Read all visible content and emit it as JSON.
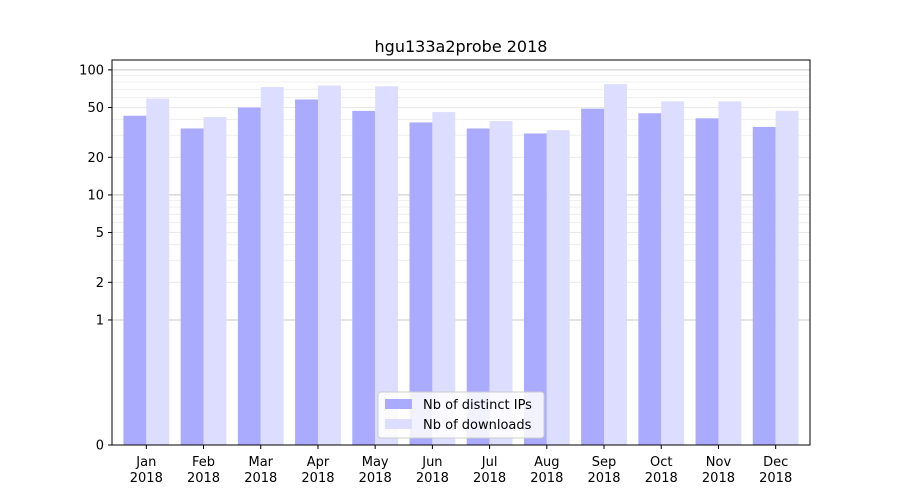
{
  "chart_data": {
    "type": "bar",
    "title": "hgu133a2probe 2018",
    "xlabel": "",
    "ylabel": "",
    "yscale": "symlog",
    "ylim": [
      0,
      120
    ],
    "yticks": [
      0,
      1,
      2,
      5,
      10,
      20,
      50,
      100
    ],
    "grid": true,
    "legend_position": "lower-center",
    "categories": [
      "Jan\n2018",
      "Feb\n2018",
      "Mar\n2018",
      "Apr\n2018",
      "May\n2018",
      "Jun\n2018",
      "Jul\n2018",
      "Aug\n2018",
      "Sep\n2018",
      "Oct\n2018",
      "Nov\n2018",
      "Dec\n2018"
    ],
    "series": [
      {
        "name": "Nb of distinct IPs",
        "color": "#aaaaff",
        "values": [
          43,
          34,
          50,
          58,
          47,
          38,
          34,
          31,
          49,
          45,
          41,
          35
        ]
      },
      {
        "name": "Nb of downloads",
        "color": "#ddddff",
        "values": [
          59,
          42,
          73,
          75,
          74,
          46,
          39,
          33,
          77,
          56,
          56,
          47
        ]
      }
    ]
  }
}
